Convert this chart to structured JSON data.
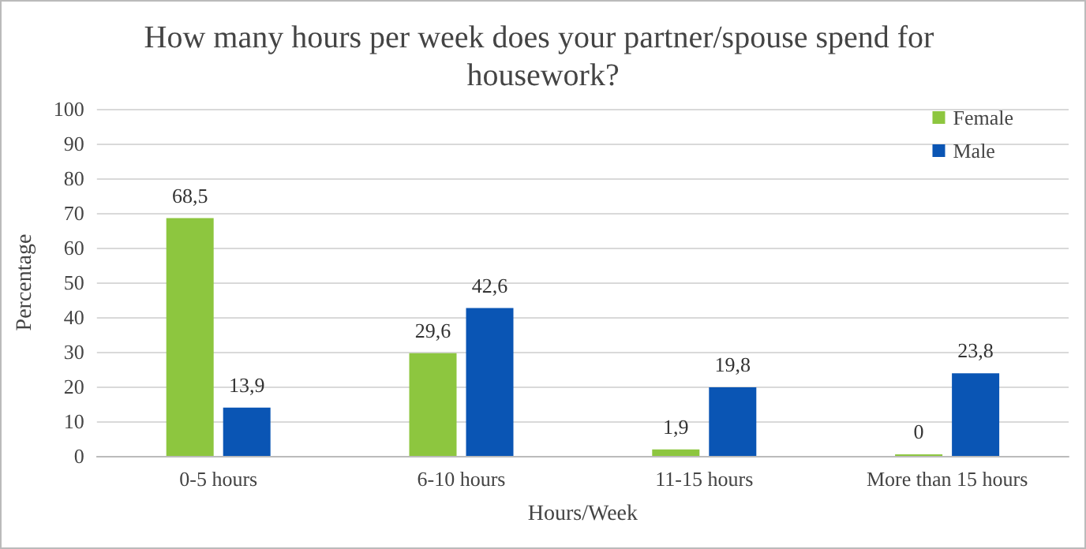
{
  "chart_data": {
    "type": "bar",
    "title": "How many hours per week does your partner/spouse spend for housework?",
    "xlabel": "Hours/Week",
    "ylabel": "Percentage",
    "categories": [
      "0-5 hours",
      "6-10 hours",
      "11-15 hours",
      "More than 15 hours"
    ],
    "series": [
      {
        "name": "Female",
        "color": "#8dc63f",
        "values": [
          68.5,
          29.6,
          1.9,
          0
        ],
        "value_labels": [
          "68,5",
          "29,6",
          "1,9",
          "0"
        ]
      },
      {
        "name": "Male",
        "color": "#0a55b4",
        "values": [
          13.9,
          42.6,
          19.8,
          23.8
        ],
        "value_labels": [
          "13,9",
          "42,6",
          "19,8",
          "23,8"
        ]
      }
    ],
    "ylim": [
      0,
      100
    ],
    "yticks": [
      0,
      10,
      20,
      30,
      40,
      50,
      60,
      70,
      80,
      90,
      100
    ],
    "grid": "y",
    "legend": "top right"
  }
}
